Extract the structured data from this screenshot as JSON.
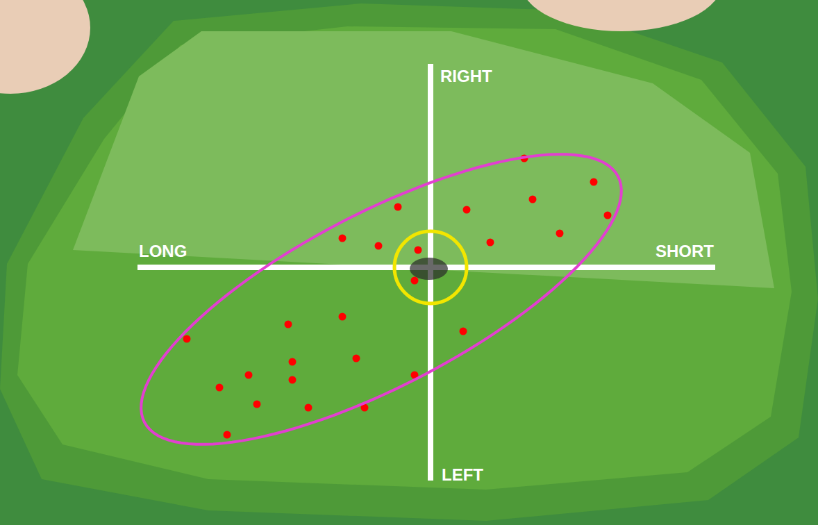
{
  "chart_data": {
    "type": "scatter",
    "axis_labels": {
      "right": "RIGHT",
      "left": "LEFT",
      "long": "LONG",
      "short": "SHORT"
    },
    "x": [
      135,
      235,
      147,
      255,
      52,
      -47,
      186,
      86,
      -127,
      -75,
      -18,
      -23,
      -127,
      -205,
      47,
      -351,
      -107,
      -199,
      -262,
      -199,
      -23,
      -304,
      -250,
      -176,
      -95,
      -293
    ],
    "y": [
      157,
      123,
      98,
      75,
      83,
      87,
      49,
      36,
      42,
      31,
      25,
      -19,
      -71,
      -82,
      -92,
      -103,
      -131,
      -136,
      -155,
      -162,
      -155,
      -173,
      -197,
      -202,
      -202,
      -241
    ],
    "color": "#ff0000",
    "marker": "circle",
    "xlim": [
      -620,
      558
    ],
    "ylim": [
      -371,
      385
    ],
    "grid": false,
    "tick_labels": false,
    "ellipse": {
      "major_axis_ends": [
        [
          -412,
          -223
        ],
        [
          270,
          131
        ]
      ],
      "semi_minor": 125,
      "color": "#e23fd0"
    },
    "target": {
      "x": 0,
      "y": 0,
      "radius": 52,
      "color": "#f2e600"
    }
  }
}
